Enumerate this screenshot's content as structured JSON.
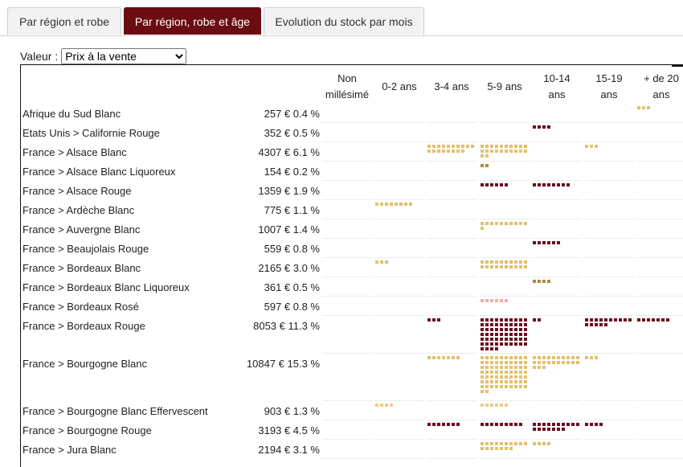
{
  "tabs": [
    {
      "label": "Par région et robe",
      "active": false
    },
    {
      "label": "Par région, robe et âge",
      "active": true
    },
    {
      "label": "Evolution du stock par mois",
      "active": false
    }
  ],
  "value_selector": {
    "label": "Valeur :",
    "selected": "Prix à la vente"
  },
  "columns": [
    "Non millésimé",
    "0-2 ans",
    "3-4 ans",
    "5-9 ans",
    "10-14 ans",
    "15-19 ans",
    "+ de 20 ans"
  ],
  "colors": {
    "white": "#e2c16b",
    "red": "#6b0c1e",
    "rose": "#efb0a2",
    "liquoreux": "#b08a3a",
    "effervescent": "#e8cf88"
  },
  "rows": [
    {
      "label": "Afrique du Sud Blanc",
      "amount": "257 €",
      "pct": "0.4 %",
      "color": "white",
      "cells": [
        0,
        0,
        0,
        0,
        0,
        0,
        3
      ]
    },
    {
      "label": "Etats Unis > Californie Rouge",
      "amount": "352 €",
      "pct": "0.5 %",
      "color": "red",
      "cells": [
        0,
        0,
        0,
        0,
        4,
        0,
        0
      ]
    },
    {
      "label": "France > Alsace Blanc",
      "amount": "4307 €",
      "pct": "6.1 %",
      "color": "white",
      "cells": [
        0,
        0,
        18,
        22,
        0,
        3,
        0
      ]
    },
    {
      "label": "France > Alsace Blanc Liquoreux",
      "amount": "154 €",
      "pct": "0.2 %",
      "color": "liquoreux",
      "cells": [
        0,
        0,
        0,
        2,
        0,
        0,
        0
      ]
    },
    {
      "label": "France > Alsace Rouge",
      "amount": "1359 €",
      "pct": "1.9 %",
      "color": "red",
      "cells": [
        0,
        0,
        0,
        6,
        8,
        0,
        0
      ]
    },
    {
      "label": "France > Ardèche Blanc",
      "amount": "775 €",
      "pct": "1.1 %",
      "color": "white",
      "cells": [
        0,
        8,
        0,
        0,
        0,
        0,
        0
      ]
    },
    {
      "label": "France > Auvergne Blanc",
      "amount": "1007 €",
      "pct": "1.4 %",
      "color": "white",
      "cells": [
        0,
        0,
        0,
        11,
        0,
        0,
        0
      ]
    },
    {
      "label": "France > Beaujolais Rouge",
      "amount": "559 €",
      "pct": "0.8 %",
      "color": "red",
      "cells": [
        0,
        0,
        0,
        0,
        6,
        0,
        0
      ]
    },
    {
      "label": "France > Bordeaux Blanc",
      "amount": "2165 €",
      "pct": "3.0 %",
      "color": "white",
      "cells": [
        0,
        3,
        0,
        20,
        0,
        0,
        0
      ]
    },
    {
      "label": "France > Bordeaux Blanc Liquoreux",
      "amount": "361 €",
      "pct": "0.5 %",
      "color": "liquoreux",
      "cells": [
        0,
        0,
        0,
        0,
        4,
        0,
        0
      ]
    },
    {
      "label": "France > Bordeaux Rosé",
      "amount": "597 €",
      "pct": "0.8 %",
      "color": "rose",
      "cells": [
        0,
        0,
        0,
        6,
        0,
        0,
        0
      ]
    },
    {
      "label": "France > Bordeaux Rouge",
      "amount": "8053 €",
      "pct": "11.3 %",
      "color": "red",
      "cells": [
        0,
        0,
        3,
        64,
        2,
        15,
        7
      ]
    },
    {
      "label": "France > Bourgogne Blanc",
      "amount": "10847 €",
      "pct": "15.3 %",
      "color": "white",
      "cells": [
        0,
        0,
        7,
        72,
        23,
        3,
        0
      ]
    },
    {
      "label": "France > Bourgogne Blanc Effervescent",
      "amount": "903 €",
      "pct": "1.3 %",
      "color": "effervescent",
      "cells": [
        0,
        4,
        0,
        6,
        0,
        0,
        0
      ]
    },
    {
      "label": "France > Bourgogne Rouge",
      "amount": "3193 €",
      "pct": "4.5 %",
      "color": "red",
      "cells": [
        0,
        0,
        7,
        9,
        17,
        4,
        0
      ]
    },
    {
      "label": "France > Jura Blanc",
      "amount": "2194 €",
      "pct": "3.1 %",
      "color": "white",
      "cells": [
        0,
        0,
        0,
        17,
        4,
        0,
        0
      ]
    }
  ]
}
